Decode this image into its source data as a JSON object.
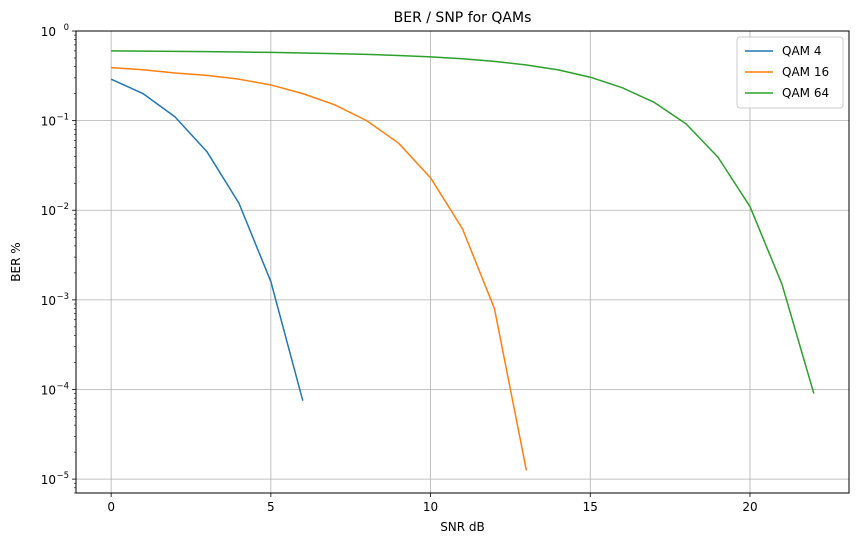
{
  "chart_data": {
    "type": "line",
    "title": "BER / SNP for QAMs",
    "xlabel": "SNR dB",
    "ylabel": "BER %",
    "xlim": [
      -1.1,
      23.1
    ],
    "ylim": [
      7e-06,
      1
    ],
    "yscale": "log",
    "grid": true,
    "legend_position": "top-right",
    "x_ticks": [
      0,
      5,
      10,
      15,
      20
    ],
    "y_ticks": [
      {
        "value": 1,
        "base": "10",
        "exp": "0"
      },
      {
        "value": 0.1,
        "base": "10",
        "exp": "−1"
      },
      {
        "value": 0.01,
        "base": "10",
        "exp": "−2"
      },
      {
        "value": 0.001,
        "base": "10",
        "exp": "−3"
      },
      {
        "value": 0.0001,
        "base": "10",
        "exp": "−4"
      },
      {
        "value": 1e-05,
        "base": "10",
        "exp": "−5"
      }
    ],
    "series": [
      {
        "name": "QAM 4",
        "color": "#1f77b4",
        "x": [
          0,
          1,
          2,
          3,
          4,
          5,
          6
        ],
        "y": [
          0.29,
          0.2,
          0.11,
          0.045,
          0.012,
          0.0016,
          7.5e-05
        ]
      },
      {
        "name": "QAM 16",
        "color": "#ff7f0e",
        "x": [
          0,
          1,
          2,
          3,
          4,
          5,
          6,
          7,
          8,
          9,
          10,
          11,
          12,
          13
        ],
        "y": [
          0.39,
          0.37,
          0.34,
          0.32,
          0.29,
          0.25,
          0.2,
          0.15,
          0.1,
          0.056,
          0.023,
          0.0062,
          0.0008,
          1.25e-05
        ]
      },
      {
        "name": "QAM 64",
        "color": "#2ca02c",
        "x": [
          0,
          1,
          2,
          3,
          4,
          5,
          6,
          7,
          8,
          9,
          10,
          11,
          12,
          13,
          14,
          15,
          16,
          17,
          18,
          19,
          20,
          21,
          22
        ],
        "y": [
          0.6,
          0.597,
          0.593,
          0.588,
          0.583,
          0.577,
          0.569,
          0.56,
          0.548,
          0.533,
          0.514,
          0.49,
          0.458,
          0.418,
          0.368,
          0.305,
          0.233,
          0.16,
          0.092,
          0.039,
          0.011,
          0.0015,
          9e-05
        ]
      }
    ]
  }
}
